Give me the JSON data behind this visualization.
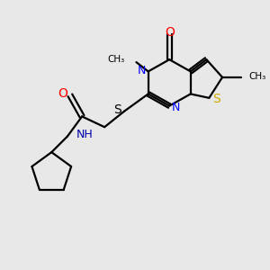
{
  "bg_color": "#e8e8e8",
  "bond_color": "#000000",
  "N_color": "#0000ff",
  "O_color": "#ff0000",
  "S_color": "#ccaa00",
  "NH_color": "#0000aa",
  "font_size": 9,
  "lw": 1.6,
  "figsize": [
    3.0,
    3.0
  ],
  "dpi": 100,
  "xlim": [
    0,
    10
  ],
  "ylim": [
    0,
    10
  ]
}
